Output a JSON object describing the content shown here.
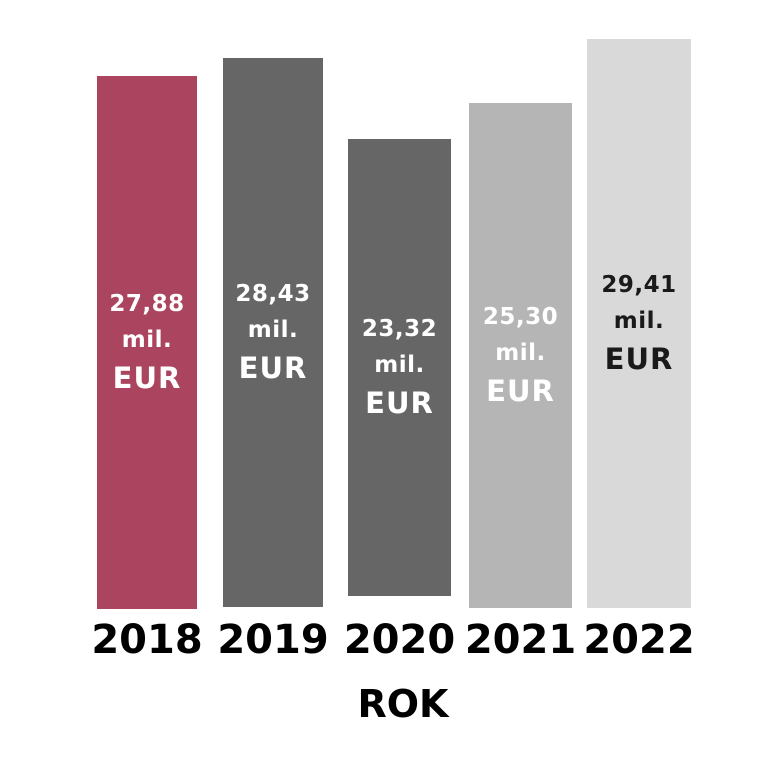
{
  "chart_data": {
    "type": "bar",
    "categories": [
      "2018",
      "2019",
      "2020",
      "2021",
      "2022"
    ],
    "values": [
      27.88,
      28.43,
      23.32,
      25.3,
      29.41
    ],
    "bar_label_lines": [
      [
        "27,88",
        "mil.",
        "EUR"
      ],
      [
        "28,43",
        "mil.",
        "EUR"
      ],
      [
        "23,32",
        "mil.",
        "EUR"
      ],
      [
        "25,30",
        "mil.",
        "EUR"
      ],
      [
        "29,41",
        "mil.",
        "EUR"
      ]
    ],
    "unit": "mil. EUR",
    "title": "",
    "xlabel": "ROK",
    "ylabel": "",
    "ylim": [
      0,
      30
    ],
    "grid": false,
    "legend": "none",
    "bar_colors": [
      "#AB445F",
      "#666666",
      "#666666",
      "#B5B5B5",
      "#D9D9D9"
    ],
    "bar_label_colors": [
      "#FFFFFF",
      "#FFFFFF",
      "#FFFFFF",
      "#FFFFFF",
      "#1A1A1A"
    ],
    "axis_text_color": "#000000",
    "background_color": "#FFFFFF"
  }
}
